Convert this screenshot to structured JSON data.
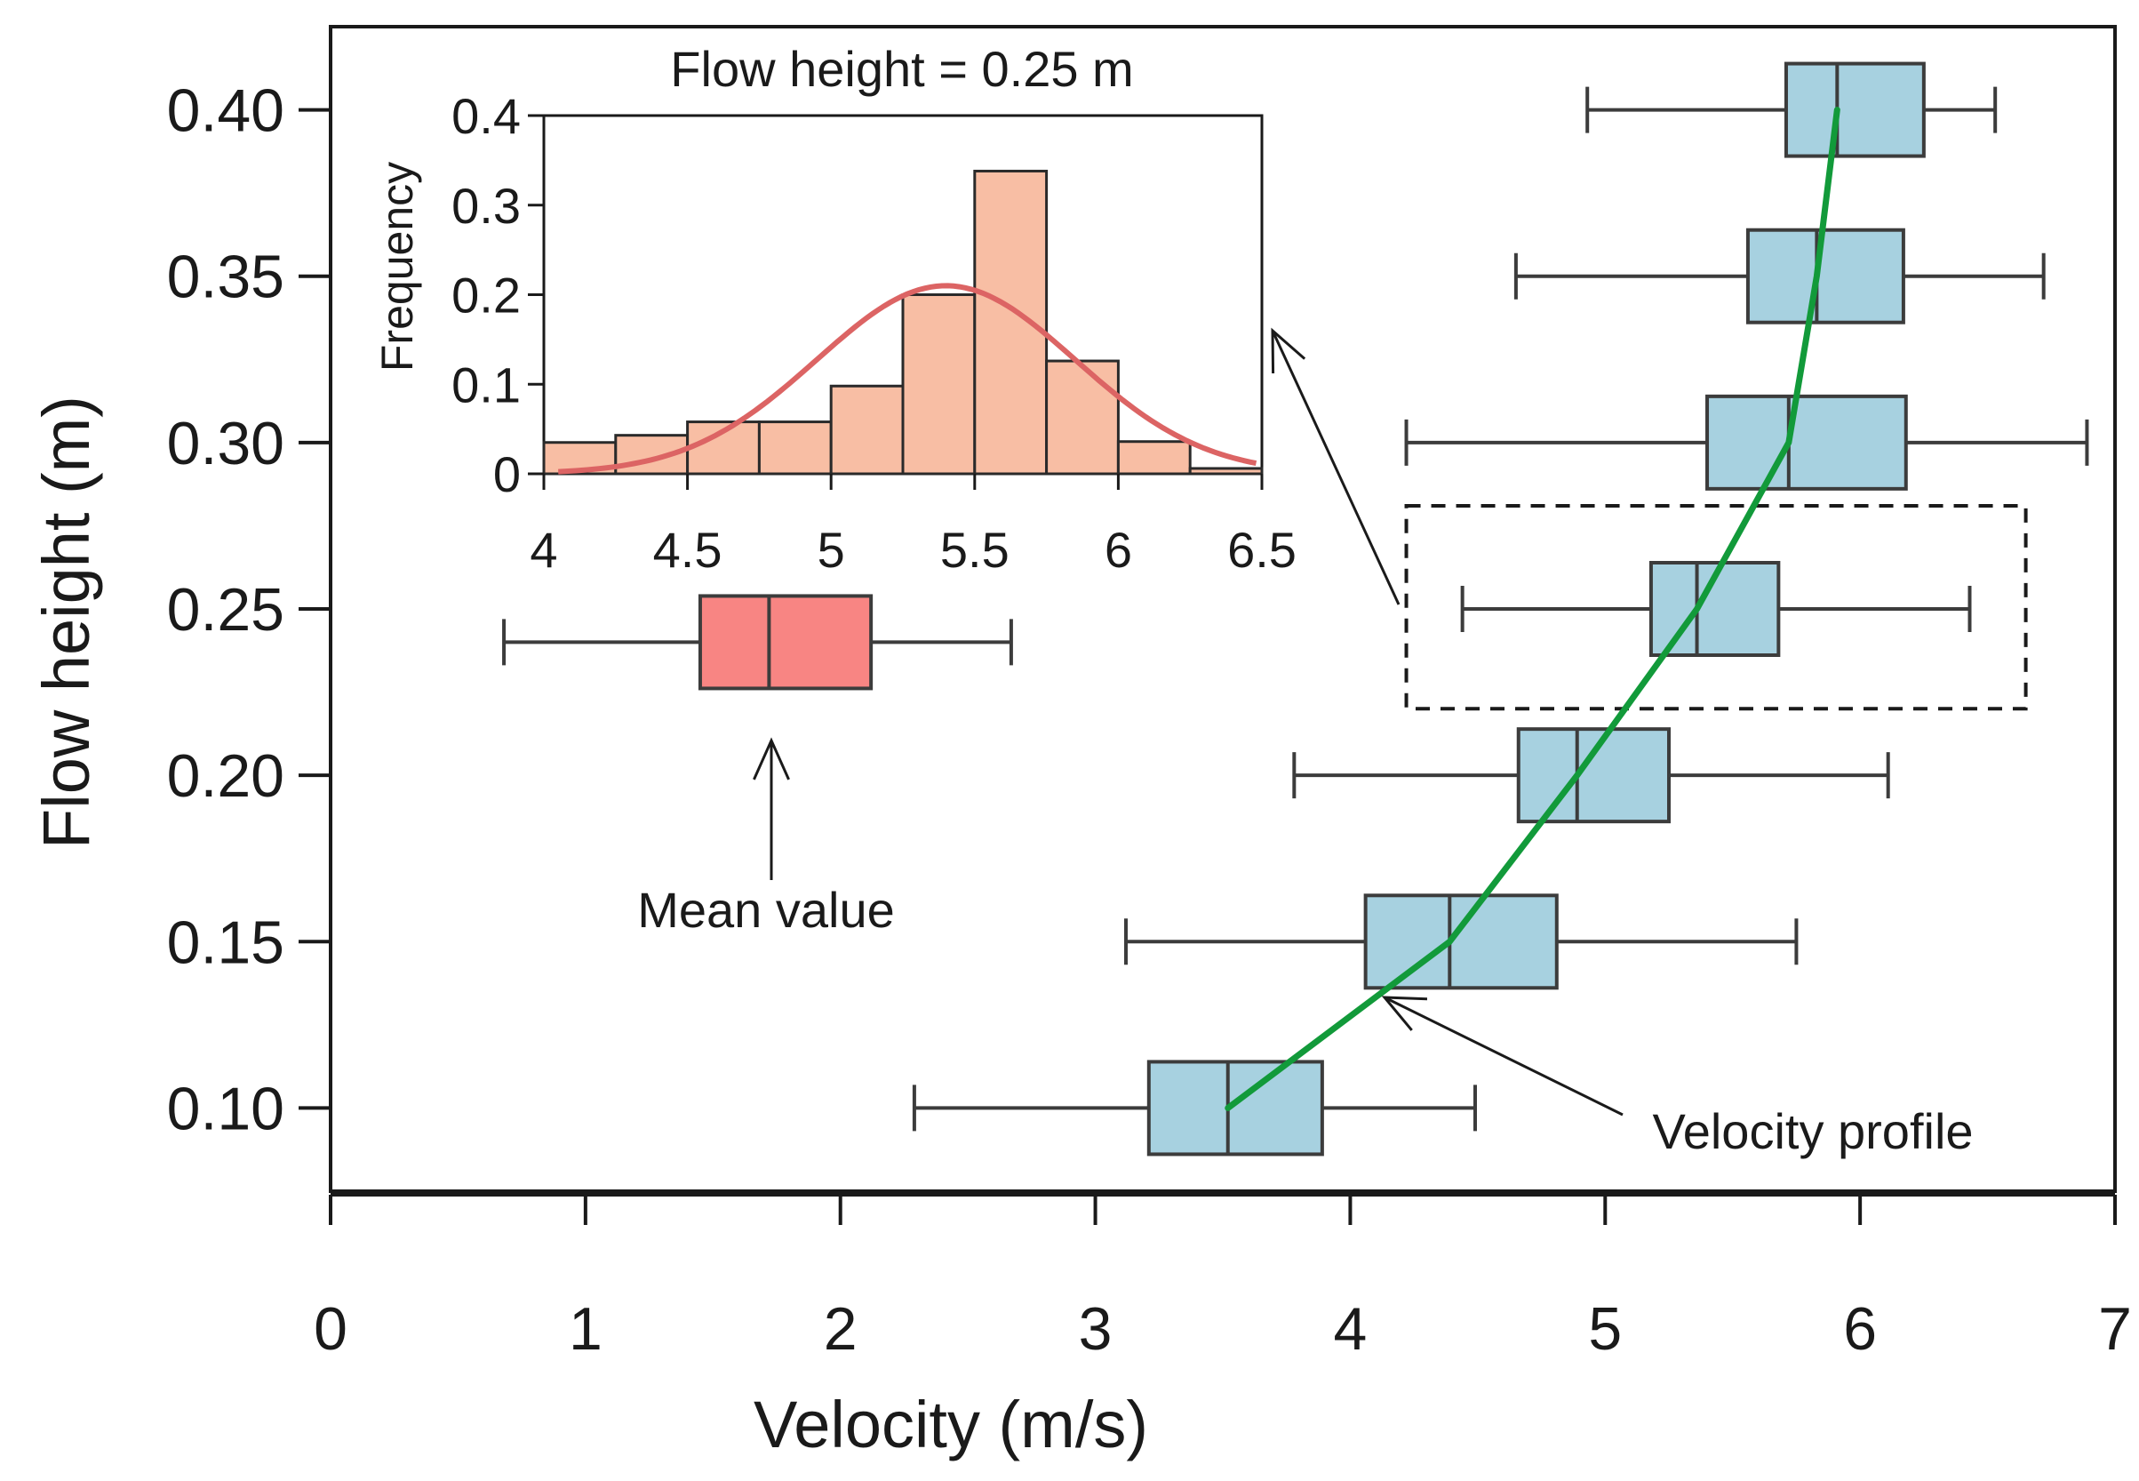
{
  "colors": {
    "axis": "#1a1a1a",
    "box_fill": "#a7d1e0",
    "box_stroke": "#3c3c3c",
    "legend_box_fill": "#f88583",
    "profile_line": "#129a3a",
    "hist_fill": "#f8bea4",
    "hist_stroke": "#2a2a2a",
    "normal_curve": "#dc6464"
  },
  "chart_data": [
    {
      "type": "boxplot",
      "orientation": "horizontal",
      "xlabel": "Velocity (m/s)",
      "ylabel": "Flow height (m)",
      "xlim": [
        0,
        7
      ],
      "ylim": [
        0.075,
        0.425
      ],
      "xticks": [
        0,
        1,
        2,
        3,
        4,
        5,
        6,
        7
      ],
      "xtick_labels": [
        "0",
        "1",
        "2",
        "3",
        "4",
        "5",
        "6",
        "7"
      ],
      "yticks": [
        0.1,
        0.15,
        0.2,
        0.25,
        0.3,
        0.35,
        0.4
      ],
      "ytick_labels": [
        "0.10",
        "0.15",
        "0.20",
        "0.25",
        "0.30",
        "0.35",
        "0.40"
      ],
      "boxes": [
        {
          "height": 0.1,
          "whisker_low": 2.29,
          "q1": 3.21,
          "median": 3.52,
          "q3": 3.89,
          "whisker_high": 4.49
        },
        {
          "height": 0.15,
          "whisker_low": 3.12,
          "q1": 4.06,
          "median": 4.39,
          "q3": 4.81,
          "whisker_high": 5.75
        },
        {
          "height": 0.2,
          "whisker_low": 3.78,
          "q1": 4.66,
          "median": 4.89,
          "q3": 5.25,
          "whisker_high": 6.11
        },
        {
          "height": 0.25,
          "whisker_low": 4.44,
          "q1": 5.18,
          "median": 5.36,
          "q3": 5.68,
          "whisker_high": 6.43
        },
        {
          "height": 0.3,
          "whisker_low": 4.22,
          "q1": 5.4,
          "median": 5.72,
          "q3": 6.18,
          "whisker_high": 6.89
        },
        {
          "height": 0.35,
          "whisker_low": 4.65,
          "q1": 5.56,
          "median": 5.83,
          "q3": 6.17,
          "whisker_high": 6.72
        },
        {
          "height": 0.4,
          "whisker_low": 4.93,
          "q1": 5.71,
          "median": 5.91,
          "q3": 6.25,
          "whisker_high": 6.53
        }
      ],
      "profile_line": {
        "name": "Velocity profile",
        "x": [
          3.52,
          4.39,
          4.89,
          5.36,
          5.72,
          5.83,
          5.91
        ],
        "y": [
          0.1,
          0.15,
          0.2,
          0.25,
          0.3,
          0.35,
          0.4
        ]
      },
      "legend_box": {
        "height": 0.24,
        "whisker_low": 0.68,
        "q1": 1.45,
        "median": 1.72,
        "q3": 2.12,
        "whisker_high": 2.67,
        "label": "Mean value"
      },
      "annotations": {
        "mean_value": "Mean value",
        "velocity_profile": "Velocity profile"
      },
      "highlight_box": {
        "x": [
          4.22,
          6.65
        ],
        "y": [
          0.22,
          0.281
        ]
      }
    },
    {
      "type": "histogram",
      "title": "Flow height = 0.25 m",
      "xlabel": "",
      "ylabel": "Frequency",
      "xlim": [
        4,
        6.5
      ],
      "ylim": [
        0,
        0.4
      ],
      "xticks": [
        4,
        4.5,
        5,
        5.5,
        6,
        6.5
      ],
      "xtick_labels": [
        "4",
        "4.5",
        "5",
        "5.5",
        "6",
        "6.5"
      ],
      "yticks": [
        0,
        0.1,
        0.2,
        0.3,
        0.4
      ],
      "ytick_labels": [
        "0",
        "0.1",
        "0.2",
        "0.3",
        "0.4"
      ],
      "bin_edges": [
        4.0,
        4.25,
        4.5,
        4.75,
        5.0,
        5.25,
        5.5,
        5.75,
        6.0,
        6.25,
        6.5
      ],
      "frequencies": [
        0.035,
        0.043,
        0.058,
        0.058,
        0.098,
        0.2,
        0.338,
        0.126,
        0.036,
        0.006
      ],
      "normal_fit": {
        "mean": 5.4,
        "sd": 0.45,
        "peak": 0.21
      }
    }
  ]
}
